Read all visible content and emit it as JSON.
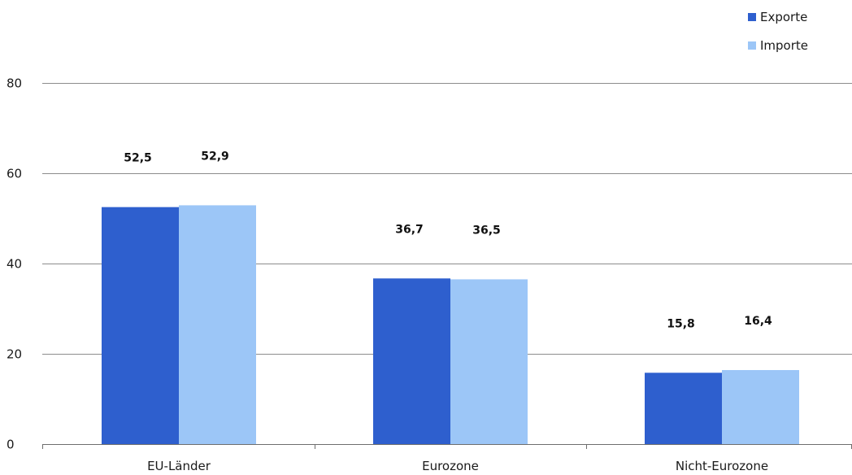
{
  "chart_data": {
    "type": "bar",
    "title": "",
    "xlabel": "",
    "ylabel": "",
    "categories": [
      "EU-Länder",
      "Eurozone",
      "Nicht-Eurozone"
    ],
    "series": [
      {
        "name": "Exporte",
        "values": [
          52.5,
          36.7,
          15.8
        ],
        "labels": [
          "52,5",
          "36,7",
          "15,8"
        ]
      },
      {
        "name": "Importe",
        "values": [
          52.9,
          36.5,
          16.4
        ],
        "labels": [
          "52,9",
          "36,5",
          "16,4"
        ]
      }
    ],
    "ylim": [
      0,
      80
    ],
    "yticks": [
      0,
      20,
      40,
      60,
      80
    ],
    "ytick_labels": [
      "0",
      "20",
      "40",
      "60",
      "80"
    ],
    "grid": true,
    "legend_position": "top-right",
    "colors": [
      "#2e5fce",
      "#9cc6f7"
    ]
  }
}
